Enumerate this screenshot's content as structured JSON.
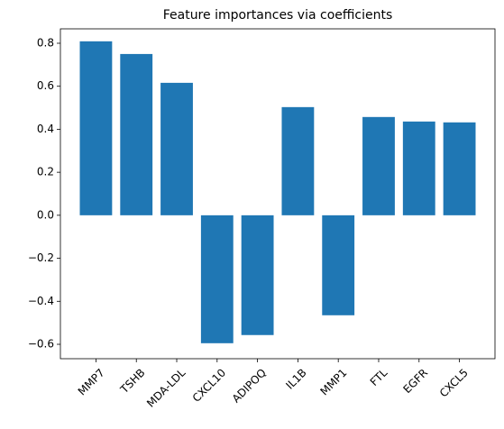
{
  "chart_data": {
    "type": "bar",
    "title": "Feature importances via coefficients",
    "categories": [
      "MMP7",
      "TSHB",
      "MDA-LDL",
      "CXCL10",
      "ADIPOQ",
      "IL1B",
      "MMP1",
      "FTL",
      "EGFR",
      "CXCL5"
    ],
    "values": [
      0.809,
      0.75,
      0.616,
      -0.595,
      -0.557,
      0.503,
      -0.465,
      0.457,
      0.436,
      0.432
    ],
    "color": "#1f77b4",
    "ylim": [
      -0.667,
      0.867
    ],
    "yticks": [
      {
        "value": -0.6,
        "label": "−0.6"
      },
      {
        "value": -0.4,
        "label": "−0.4"
      },
      {
        "value": -0.2,
        "label": "−0.2"
      },
      {
        "value": 0,
        "label": "0.0"
      },
      0.2,
      0.4,
      0.6,
      0.8
    ]
  }
}
